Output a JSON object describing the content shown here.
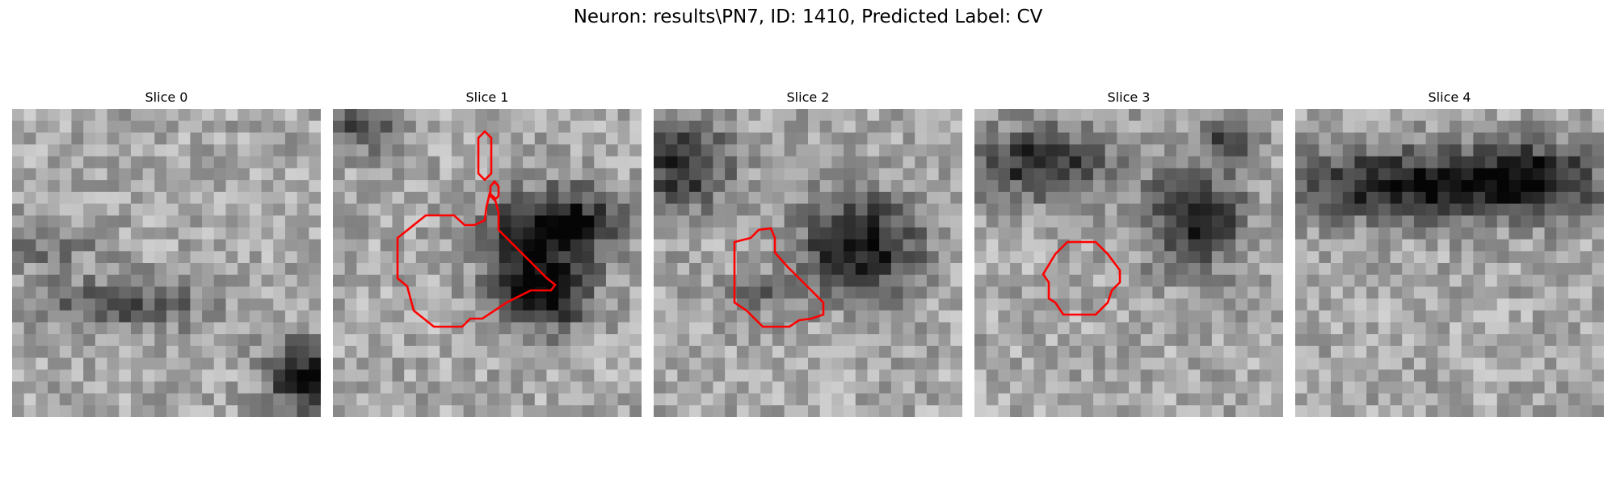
{
  "figure": {
    "title": "Neuron: results\\PN7, ID: 1410, Predicted Label: CV"
  },
  "panels": [
    {
      "title": "Slice 0",
      "has_outline": false
    },
    {
      "title": "Slice 1",
      "has_outline": true
    },
    {
      "title": "Slice 2",
      "has_outline": true
    },
    {
      "title": "Slice 3",
      "has_outline": true
    },
    {
      "title": "Slice 4",
      "has_outline": false
    }
  ],
  "colors": {
    "outline": "#ff0000",
    "background": "#ffffff"
  }
}
